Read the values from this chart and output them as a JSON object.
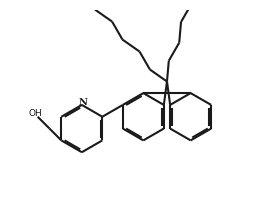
{
  "background": "#ffffff",
  "line_color": "#1a1a1a",
  "line_width": 1.5,
  "fig_width": 2.63,
  "fig_height": 1.98,
  "dpi": 100
}
